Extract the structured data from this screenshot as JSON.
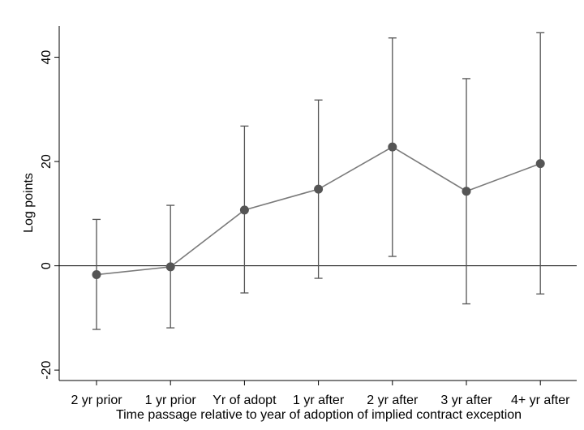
{
  "chart_data": {
    "type": "line",
    "title": "",
    "xlabel": "Time passage relative to year of adoption of implied contract exception",
    "ylabel": "Log points",
    "categories": [
      "2 yr prior",
      "1 yr prior",
      "Yr of adopt",
      "1 yr after",
      "2 yr after",
      "3 yr after",
      "4+ yr after"
    ],
    "ylim": [
      -22,
      46
    ],
    "yticks": [
      -20,
      0,
      20,
      40
    ],
    "reference_line": 0,
    "error_bars": true,
    "grid": false,
    "series": [
      {
        "values": [
          -1.7,
          -0.2,
          10.7,
          14.7,
          22.8,
          14.3,
          19.6
        ],
        "lower": [
          -12.2,
          -11.9,
          -5.2,
          -2.4,
          1.8,
          -7.3,
          -5.4
        ],
        "upper": [
          8.9,
          11.6,
          26.8,
          31.8,
          43.7,
          35.9,
          44.7
        ]
      }
    ],
    "colors": {
      "line": "#7a7a7a",
      "marker": "#555555",
      "errbar": "#555555"
    }
  }
}
